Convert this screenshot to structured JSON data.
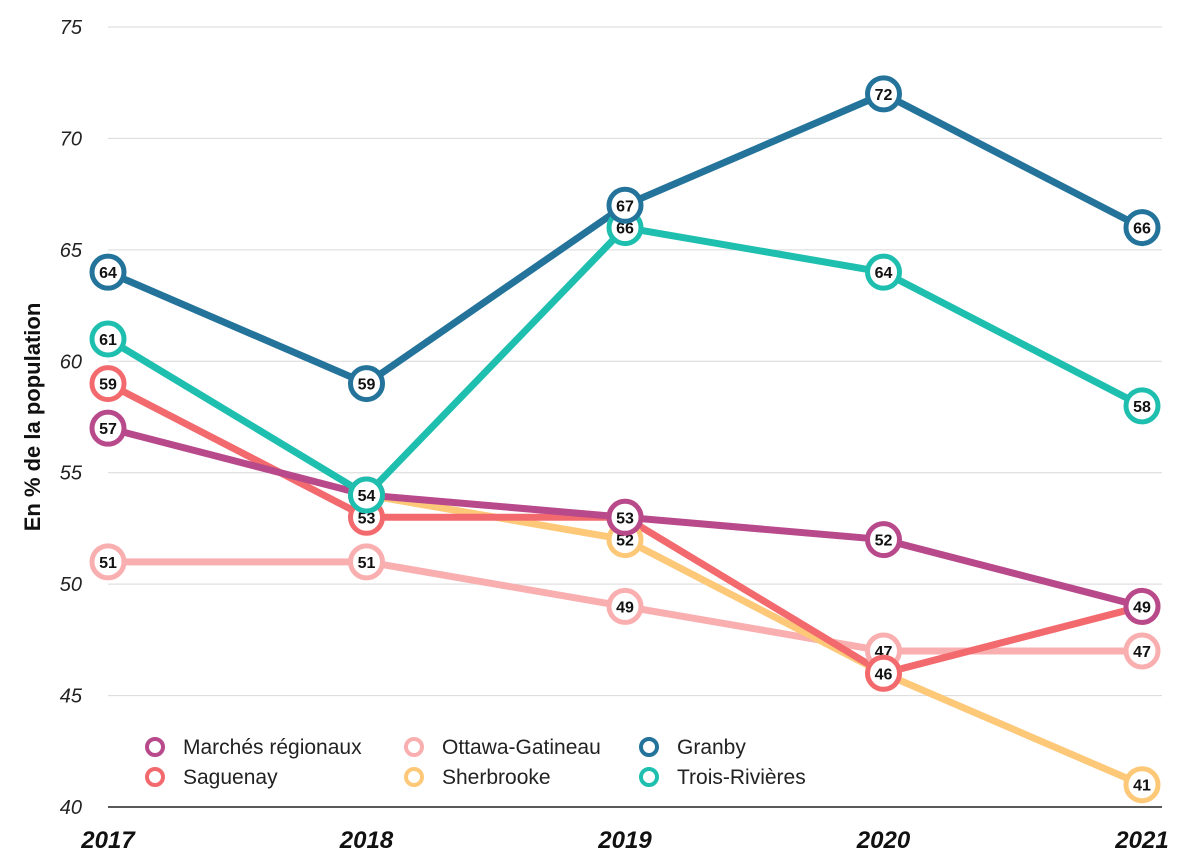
{
  "chart_data": {
    "type": "line",
    "title": "",
    "xlabel": "",
    "ylabel": "En % de la population",
    "x": [
      "2017",
      "2018",
      "2019",
      "2020",
      "2021"
    ],
    "yticks": [
      "40",
      "45",
      "50",
      "55",
      "60",
      "65",
      "70",
      "75"
    ],
    "ylim": [
      40,
      75
    ],
    "grid": "horizontal",
    "legend_position": "bottom-left",
    "series": [
      {
        "name": "Ottawa-Gatineau",
        "color": "#F9AFB0",
        "values": [
          51,
          51,
          49,
          47,
          47
        ]
      },
      {
        "name": "Sherbrooke",
        "color": "#FDC878",
        "values": [
          null,
          54,
          52,
          46,
          41
        ]
      },
      {
        "name": "Saguenay",
        "color": "#F36A6E",
        "values": [
          59,
          53,
          53,
          46,
          49
        ]
      },
      {
        "name": "Marchés régionaux",
        "color": "#B8498A",
        "values": [
          57,
          54,
          53,
          52,
          49
        ]
      },
      {
        "name": "Trois-Rivières",
        "color": "#1FBFB0",
        "values": [
          61,
          54,
          66,
          64,
          58
        ]
      },
      {
        "name": "Granby",
        "color": "#23739A",
        "values": [
          64,
          59,
          67,
          72,
          66
        ]
      }
    ],
    "legend": [
      {
        "name": "Marchés régionaux",
        "color": "#B8498A"
      },
      {
        "name": "Ottawa-Gatineau",
        "color": "#F9AFB0"
      },
      {
        "name": "Granby",
        "color": "#23739A"
      },
      {
        "name": "Saguenay",
        "color": "#F36A6E"
      },
      {
        "name": "Sherbrooke",
        "color": "#FDC878"
      },
      {
        "name": "Trois-Rivières",
        "color": "#1FBFB0"
      }
    ]
  }
}
